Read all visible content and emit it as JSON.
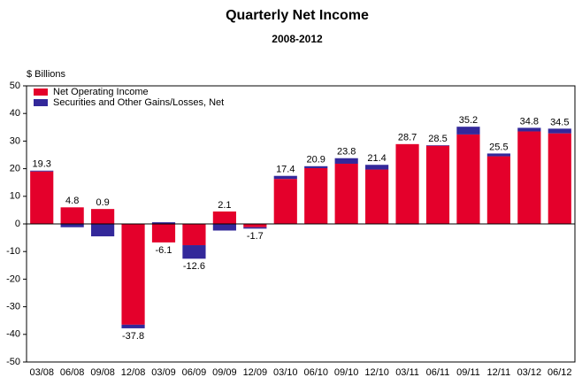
{
  "chart_data": {
    "type": "bar",
    "stacked": true,
    "title": "Quarterly Net Income",
    "subtitle": "2008-2012",
    "y_label": "$ Billions",
    "categories": [
      "03/08",
      "06/08",
      "09/08",
      "12/08",
      "03/09",
      "06/09",
      "09/09",
      "12/09",
      "03/10",
      "06/10",
      "09/10",
      "12/10",
      "03/11",
      "06/11",
      "09/11",
      "12/11",
      "03/12",
      "06/12"
    ],
    "series": [
      {
        "name": "Net Operating Income",
        "color": "#e4002b",
        "values": [
          19.0,
          6.0,
          5.4,
          -36.5,
          -6.7,
          -7.7,
          4.5,
          -1.2,
          16.3,
          20.2,
          21.8,
          19.7,
          28.9,
          28.3,
          32.4,
          24.5,
          33.5,
          32.8
        ]
      },
      {
        "name": "Securities and Other Gains/Losses, Net",
        "color": "#33289a",
        "values": [
          0.3,
          -1.2,
          -4.5,
          -1.3,
          0.6,
          -4.9,
          -2.4,
          -0.5,
          1.1,
          0.7,
          2.0,
          1.7,
          -0.2,
          0.2,
          2.8,
          1.0,
          1.3,
          1.7
        ]
      }
    ],
    "totals": [
      19.3,
      4.8,
      0.9,
      -37.8,
      -6.1,
      -12.6,
      2.1,
      -1.7,
      17.4,
      20.9,
      23.8,
      21.4,
      28.7,
      28.5,
      35.2,
      25.5,
      34.8,
      34.5
    ],
    "ylim": [
      -50,
      50
    ],
    "yticks": [
      -50,
      -40,
      -30,
      -20,
      -10,
      0,
      10,
      20,
      30,
      40,
      50
    ],
    "legend": "upper left"
  }
}
